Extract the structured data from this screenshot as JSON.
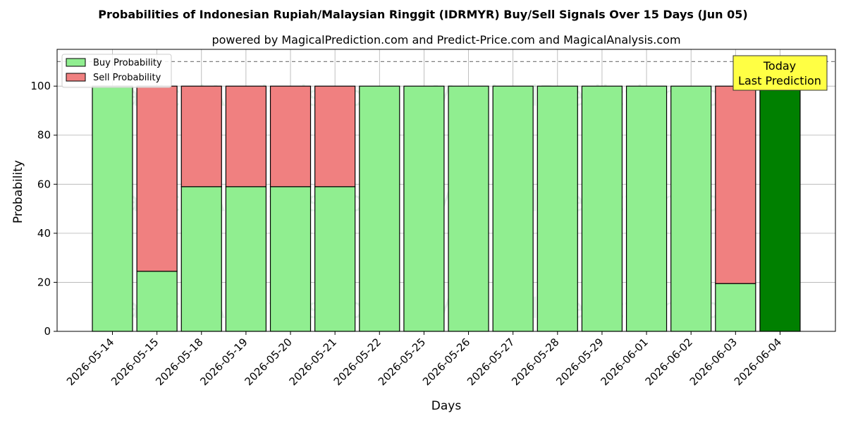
{
  "chart_data": {
    "type": "bar",
    "stacked": true,
    "title": "Probabilities of Indonesian Rupiah/Malaysian Ringgit (IDRMYR) Buy/Sell Signals Over 15 Days (Jun 05)",
    "subtitle": "powered by MagicalPrediction.com and Predict-Price.com and MagicalAnalysis.com",
    "xlabel": "Days",
    "ylabel": "Probability",
    "ylim": [
      0,
      115
    ],
    "yticks": [
      0,
      20,
      40,
      60,
      80,
      100
    ],
    "reference_line": 110,
    "grid": true,
    "legend_position": "top-left",
    "categories": [
      "2026-05-14",
      "2026-05-15",
      "2026-05-18",
      "2026-05-19",
      "2026-05-20",
      "2026-05-21",
      "2026-05-22",
      "2026-05-25",
      "2026-05-26",
      "2026-05-27",
      "2026-05-28",
      "2026-05-29",
      "2026-06-01",
      "2026-06-02",
      "2026-06-03",
      "2026-06-04"
    ],
    "series": [
      {
        "name": "Buy Probability",
        "color": "#90ee90",
        "values": [
          100,
          24.5,
          59,
          59,
          59,
          59,
          100,
          100,
          100,
          100,
          100,
          100,
          100,
          100,
          19.5,
          100
        ]
      },
      {
        "name": "Sell Probability",
        "color": "#f08080",
        "values": [
          0,
          75.5,
          41,
          41,
          41,
          41,
          0,
          0,
          0,
          0,
          0,
          0,
          0,
          0,
          80.5,
          0
        ]
      }
    ],
    "highlight": {
      "category": "2026-06-04",
      "color": "#008000"
    },
    "annotation": {
      "line1": "Today",
      "line2": "Last Prediction",
      "background": "#ffff44"
    },
    "watermarks": [
      "MagicalAnalysis.com",
      "MagicalPrediction.com"
    ]
  }
}
